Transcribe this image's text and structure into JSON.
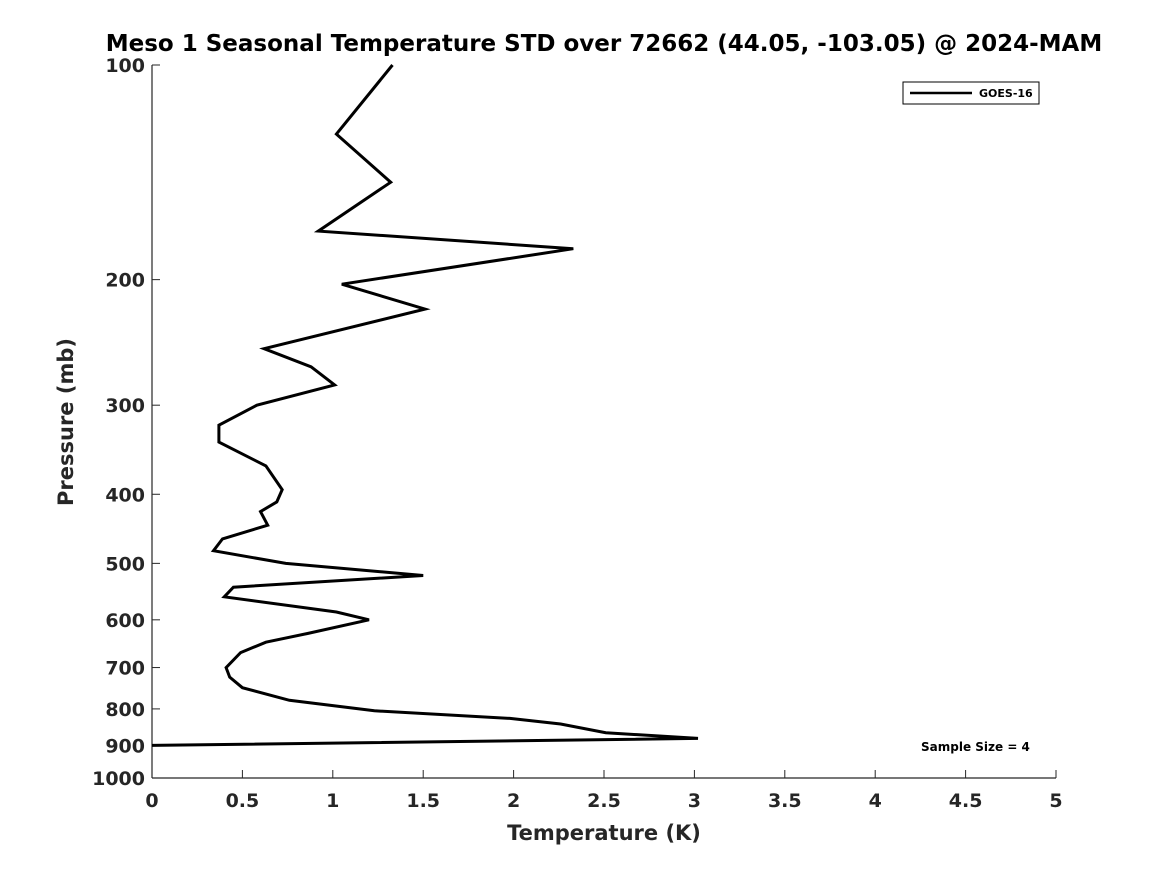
{
  "chart_data": {
    "type": "line",
    "title": "Meso 1 Seasonal Temperature STD over 72662 (44.05, -103.05) @ 2024-MAM",
    "xlabel": "Temperature (K)",
    "ylabel": "Pressure (mb)",
    "xlim": [
      0,
      5
    ],
    "ylim": [
      100,
      1000
    ],
    "y_scale": "log",
    "y_reversed": true,
    "xticks": [
      0,
      0.5,
      1,
      1.5,
      2,
      2.5,
      3,
      3.5,
      4,
      4.5,
      5
    ],
    "xtick_labels": [
      "0",
      "0.5",
      "1",
      "1.5",
      "2",
      "2.5",
      "3",
      "3.5",
      "4",
      "4.5",
      "5"
    ],
    "yticks": [
      100,
      200,
      300,
      400,
      500,
      600,
      700,
      800,
      900,
      1000
    ],
    "ytick_labels": [
      "100",
      "200",
      "300",
      "400",
      "500",
      "600",
      "700",
      "800",
      "900",
      "1000"
    ],
    "grid": false,
    "legend": {
      "position": "top-right",
      "entries": [
        "GOES-16"
      ]
    },
    "annotations": [
      {
        "text": "Sample Size = 4",
        "position": "bottom-right"
      }
    ],
    "series": [
      {
        "name": "GOES-16",
        "color": "#000000",
        "points": [
          [
            1.33,
            100
          ],
          [
            1.02,
            125
          ],
          [
            1.32,
            146
          ],
          [
            0.92,
            171
          ],
          [
            2.33,
            181
          ],
          [
            1.05,
            203
          ],
          [
            1.51,
            220
          ],
          [
            0.62,
            250
          ],
          [
            0.88,
            265
          ],
          [
            1.01,
            281
          ],
          [
            0.58,
            300
          ],
          [
            0.37,
            320
          ],
          [
            0.37,
            338
          ],
          [
            0.63,
            365
          ],
          [
            0.72,
            394
          ],
          [
            0.69,
            410
          ],
          [
            0.6,
            423
          ],
          [
            0.64,
            442
          ],
          [
            0.39,
            462
          ],
          [
            0.34,
            480
          ],
          [
            0.74,
            500
          ],
          [
            1.5,
            520
          ],
          [
            0.45,
            540
          ],
          [
            0.4,
            557
          ],
          [
            1.02,
            585
          ],
          [
            1.2,
            600
          ],
          [
            0.86,
            627
          ],
          [
            0.63,
            645
          ],
          [
            0.49,
            667
          ],
          [
            0.41,
            700
          ],
          [
            0.43,
            722
          ],
          [
            0.5,
            747
          ],
          [
            0.76,
            778
          ],
          [
            1.23,
            805
          ],
          [
            1.98,
            825
          ],
          [
            2.26,
            840
          ],
          [
            2.51,
            864
          ],
          [
            3.02,
            880
          ],
          [
            0.0,
            900
          ]
        ]
      }
    ]
  }
}
